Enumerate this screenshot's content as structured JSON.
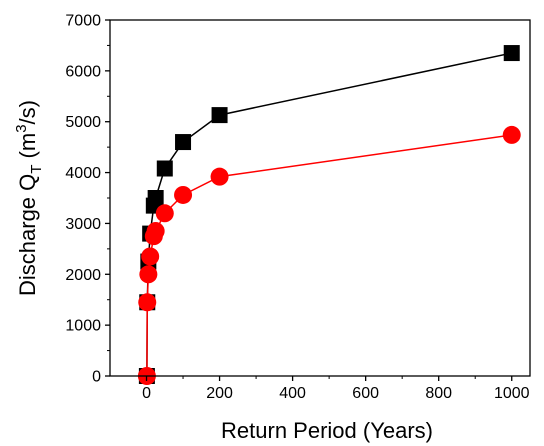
{
  "chart_data": {
    "type": "line",
    "xlabel": "Return Period (Years)",
    "ylabel": {
      "prefix": "Discharge Q",
      "sub": "T",
      "unit_open": " (m",
      "sup": "3",
      "unit_close": "/s)"
    },
    "xlim": [
      -100,
      1050
    ],
    "ylim": [
      0,
      7000
    ],
    "xticks": [
      0,
      200,
      400,
      600,
      800,
      1000
    ],
    "yticks": [
      0,
      1000,
      2000,
      3000,
      4000,
      5000,
      6000,
      7000
    ],
    "grid": false,
    "series": [
      {
        "color": "#000000",
        "marker": "square",
        "x": [
          1,
          2,
          5,
          10,
          20,
          25,
          50,
          100,
          200,
          1000
        ],
        "y": [
          0,
          1450,
          2250,
          2800,
          3350,
          3500,
          4080,
          4600,
          5130,
          6350
        ]
      },
      {
        "color": "#ff0000",
        "marker": "circle",
        "x": [
          1,
          2,
          5,
          10,
          20,
          25,
          50,
          100,
          200,
          1000
        ],
        "y": [
          0,
          1450,
          2000,
          2350,
          2750,
          2850,
          3200,
          3560,
          3920,
          4740
        ]
      }
    ]
  }
}
